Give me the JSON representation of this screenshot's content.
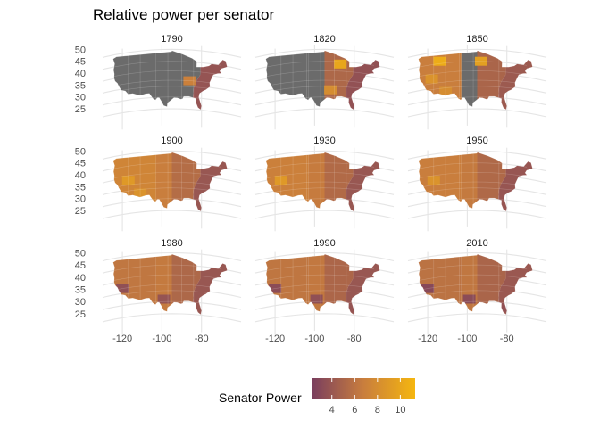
{
  "chart_data": {
    "type": "choropleth-map-facets",
    "title": "Relative power per senator",
    "xlabel": "",
    "ylabel": "",
    "lon_ticks": [
      -120,
      -100,
      -80
    ],
    "lat_ticks": [
      25,
      30,
      35,
      40,
      45,
      50
    ],
    "missing_color": "#6b6b6b",
    "colors": {
      "low": "#7b3f5e",
      "mid": "#c97e3d",
      "high": "#f5b60f"
    },
    "facets": [
      {
        "year": "1790",
        "east": 3.8,
        "midwest": null,
        "plains": null,
        "west": null,
        "highlights": [
          {
            "lon": -86,
            "lat": 37,
            "value": 7
          }
        ]
      },
      {
        "year": "1820",
        "east": 3.6,
        "midwest": 5.2,
        "plains": null,
        "west": null,
        "highlights": [
          {
            "lon": -87,
            "lat": 44,
            "value": 10
          },
          {
            "lon": -92,
            "lat": 33,
            "value": 8
          }
        ]
      },
      {
        "year": "1850",
        "east": 4.2,
        "midwest": 5.0,
        "plains": null,
        "west": 6.8,
        "highlights": [
          {
            "lon": -114,
            "lat": 46,
            "value": 10.5
          },
          {
            "lon": -93,
            "lat": 45,
            "value": 9.5
          },
          {
            "lon": -118,
            "lat": 39,
            "value": 8.5
          },
          {
            "lon": -111,
            "lat": 33,
            "value": 8
          }
        ]
      },
      {
        "year": "1900",
        "east": 4.0,
        "midwest": 5.6,
        "plains": 6.8,
        "west": 7.4,
        "highlights": [
          {
            "lon": -117,
            "lat": 39,
            "value": 9
          },
          {
            "lon": -111,
            "lat": 33,
            "value": 8.5
          }
        ]
      },
      {
        "year": "1930",
        "east": 4.0,
        "midwest": 5.4,
        "plains": 6.6,
        "west": 7.0,
        "highlights": [
          {
            "lon": -117,
            "lat": 39,
            "value": 9
          }
        ]
      },
      {
        "year": "1950",
        "east": 3.9,
        "midwest": 5.3,
        "plains": 6.5,
        "west": 6.8,
        "highlights": [
          {
            "lon": -117,
            "lat": 39,
            "value": 8.5
          }
        ]
      },
      {
        "year": "1980",
        "east": 4.0,
        "midwest": 5.2,
        "plains": 6.5,
        "west": 6.3,
        "highlights": [
          {
            "lon": -120,
            "lat": 37,
            "value": 3.5
          },
          {
            "lon": -99,
            "lat": 31,
            "value": 3.8
          },
          {
            "lon": -82,
            "lat": 28,
            "value": 4
          }
        ]
      },
      {
        "year": "1990",
        "east": 4.0,
        "midwest": 5.1,
        "plains": 6.4,
        "west": 6.2,
        "highlights": [
          {
            "lon": -120,
            "lat": 37,
            "value": 3.2
          },
          {
            "lon": -99,
            "lat": 31,
            "value": 3.5
          },
          {
            "lon": -82,
            "lat": 28,
            "value": 3.8
          }
        ]
      },
      {
        "year": "2010",
        "east": 4.1,
        "midwest": 5.0,
        "plains": 6.3,
        "west": 6.0,
        "highlights": [
          {
            "lon": -120,
            "lat": 37,
            "value": 3.0
          },
          {
            "lon": -99,
            "lat": 31,
            "value": 3.2
          },
          {
            "lon": -82,
            "lat": 28,
            "value": 3.6
          }
        ]
      }
    ],
    "legend": {
      "title": "Senator Power",
      "ticks": [
        4,
        6,
        8,
        10
      ],
      "range": [
        2.3,
        11.3
      ],
      "placement": "bottom"
    }
  }
}
